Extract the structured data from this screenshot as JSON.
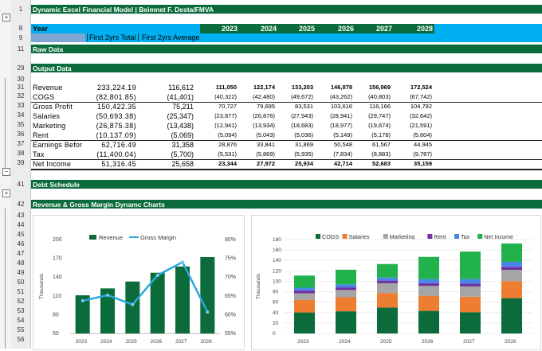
{
  "title": "Dynamic Excel Financial Model | Beimnet F. Desta/FMVA",
  "year_label": "Year",
  "years": [
    "2023",
    "2024",
    "2025",
    "2026",
    "2027",
    "2028"
  ],
  "subheaders": {
    "first2_total": "First 2yrs Total",
    "first2_avg": "First 2yrs Average"
  },
  "sections": {
    "raw": "Raw Data",
    "output": "Output Data",
    "debt": "Debt Schedule",
    "charts": "Revenue & Gross Margin Dynamc Charts"
  },
  "row_numbers": {
    "r1": "1",
    "r8": "8",
    "r9": "9",
    "r11": "11",
    "r29": "29",
    "r30": "30",
    "r31": "31",
    "r32": "32",
    "r33": "33",
    "r34": "34",
    "r35": "35",
    "r36": "36",
    "r37": "37",
    "r38": "38",
    "r39": "39",
    "r41": "41",
    "r42": "42",
    "r43": "43",
    "r44": "44",
    "r45": "45",
    "r46": "46",
    "r47": "47",
    "r48": "48",
    "r49": "49",
    "r50": "50",
    "r51": "51",
    "r52": "52",
    "r53": "53",
    "r54": "54",
    "r55": "55",
    "r56": "56",
    "r57": "57",
    "r58": "58",
    "r59": "59",
    "r60": "60"
  },
  "output_rows": [
    {
      "label": "Revenue",
      "total": "233,224.19",
      "avg": "116,612",
      "vals": [
        "111,050",
        "122,174",
        "133,203",
        "146,878",
        "156,969",
        "172,524"
      ],
      "bold": true
    },
    {
      "label": "COGS",
      "total": "(82,801.85)",
      "avg": "(41,401)",
      "vals": [
        "(40,322)",
        "(42,480)",
        "(49,672)",
        "(43,262)",
        "(40,803)",
        "(67,742)"
      ],
      "bold": false
    },
    {
      "label": "Gross Profit",
      "total": "150,422.35",
      "avg": "75,211",
      "vals": [
        "70,727",
        "79,695",
        "83,531",
        "103,616",
        "116,166",
        "104,782"
      ],
      "bold": false
    },
    {
      "label": "Salaries",
      "total": "(50,693.38)",
      "avg": "(25,347)",
      "vals": [
        "(23,877)",
        "(26,876)",
        "(27,943)",
        "(28,941)",
        "(29,747)",
        "(32,642)"
      ],
      "bold": false
    },
    {
      "label": "Marketing",
      "total": "(26,875.38)",
      "avg": "(13,438)",
      "vals": [
        "(12,941)",
        "(13,934)",
        "(18,683)",
        "(18,977)",
        "(19,674)",
        "(21,591)"
      ],
      "bold": false
    },
    {
      "label": "Rent",
      "total": "(10,137.09)",
      "avg": "(5,069)",
      "vals": [
        "(5,094)",
        "(5,043)",
        "(5,036)",
        "(5,149)",
        "(5,178)",
        "(5,604)"
      ],
      "bold": false
    },
    {
      "label": "Earnings Befor",
      "total": "62,716.49",
      "avg": "31,358",
      "vals": [
        "28,876",
        "33,841",
        "31,869",
        "50,548",
        "61,567",
        "44,945"
      ],
      "bold": false
    },
    {
      "label": "Tax",
      "total": "(11,400.04)",
      "avg": "(5,700)",
      "vals": [
        "(5,531)",
        "(5,869)",
        "(5,935)",
        "(7,834)",
        "(8,883)",
        "(9,787)"
      ],
      "bold": false
    },
    {
      "label": "Net Income",
      "total": "51,316.45",
      "avg": "25,658",
      "vals": [
        "23,344",
        "27,972",
        "25,934",
        "42,714",
        "52,683",
        "35,159"
      ],
      "bold": true
    }
  ],
  "chart1": {
    "legend": [
      "Revenue",
      "Gross Margin"
    ],
    "yaxis_left_title": "Thousands",
    "yticks_left": [
      "200",
      "170",
      "140",
      "110",
      "80",
      "50"
    ],
    "yticks_right": [
      "80%",
      "75%",
      "70%",
      "65%",
      "60%",
      "55%"
    ],
    "colors": {
      "bar": "#0b6b3a",
      "line": "#29a8e0"
    }
  },
  "chart1_data": {
    "type": "bar",
    "categories": [
      "2023",
      "2024",
      "2025",
      "2026",
      "2027",
      "2028"
    ],
    "series": [
      {
        "name": "Revenue",
        "values": [
          111,
          122,
          133,
          147,
          157,
          172
        ]
      },
      {
        "name": "Gross Margin",
        "values": [
          63.7,
          65.2,
          62.7,
          70.5,
          74.0,
          60.7
        ]
      }
    ],
    "ylim": [
      50,
      200
    ],
    "y2lim": [
      55,
      80
    ]
  },
  "chart2": {
    "legend": [
      "COGS",
      "Salaries",
      "Marketing",
      "Rent",
      "Tax",
      "Net Income"
    ],
    "yaxis_title": "Thousands",
    "yticks": [
      "180",
      "160",
      "140",
      "120",
      "100",
      "80",
      "60",
      "40",
      "20",
      "0"
    ],
    "colors": [
      "#0b6b3a",
      "#ed7d31",
      "#a5a5a5",
      "#7030a0",
      "#4a86e8",
      "#21b24b"
    ]
  },
  "chart_data": {
    "type": "bar",
    "stacked": true,
    "categories": [
      "2023",
      "2024",
      "2025",
      "2026",
      "2027",
      "2028"
    ],
    "series": [
      {
        "name": "COGS",
        "values": [
          40.3,
          42.5,
          49.7,
          43.3,
          40.8,
          67.7
        ]
      },
      {
        "name": "Salaries",
        "values": [
          23.9,
          26.9,
          27.9,
          28.9,
          29.7,
          32.6
        ]
      },
      {
        "name": "Marketing",
        "values": [
          12.9,
          13.9,
          18.7,
          19.0,
          19.7,
          21.6
        ]
      },
      {
        "name": "Rent",
        "values": [
          5.1,
          5.0,
          5.0,
          5.1,
          5.2,
          5.6
        ]
      },
      {
        "name": "Tax",
        "values": [
          5.5,
          5.9,
          5.9,
          7.8,
          8.9,
          9.8
        ]
      },
      {
        "name": "Net Income",
        "values": [
          23.3,
          28.0,
          25.9,
          42.7,
          52.7,
          35.2
        ]
      }
    ],
    "ylim": [
      0,
      180
    ]
  }
}
